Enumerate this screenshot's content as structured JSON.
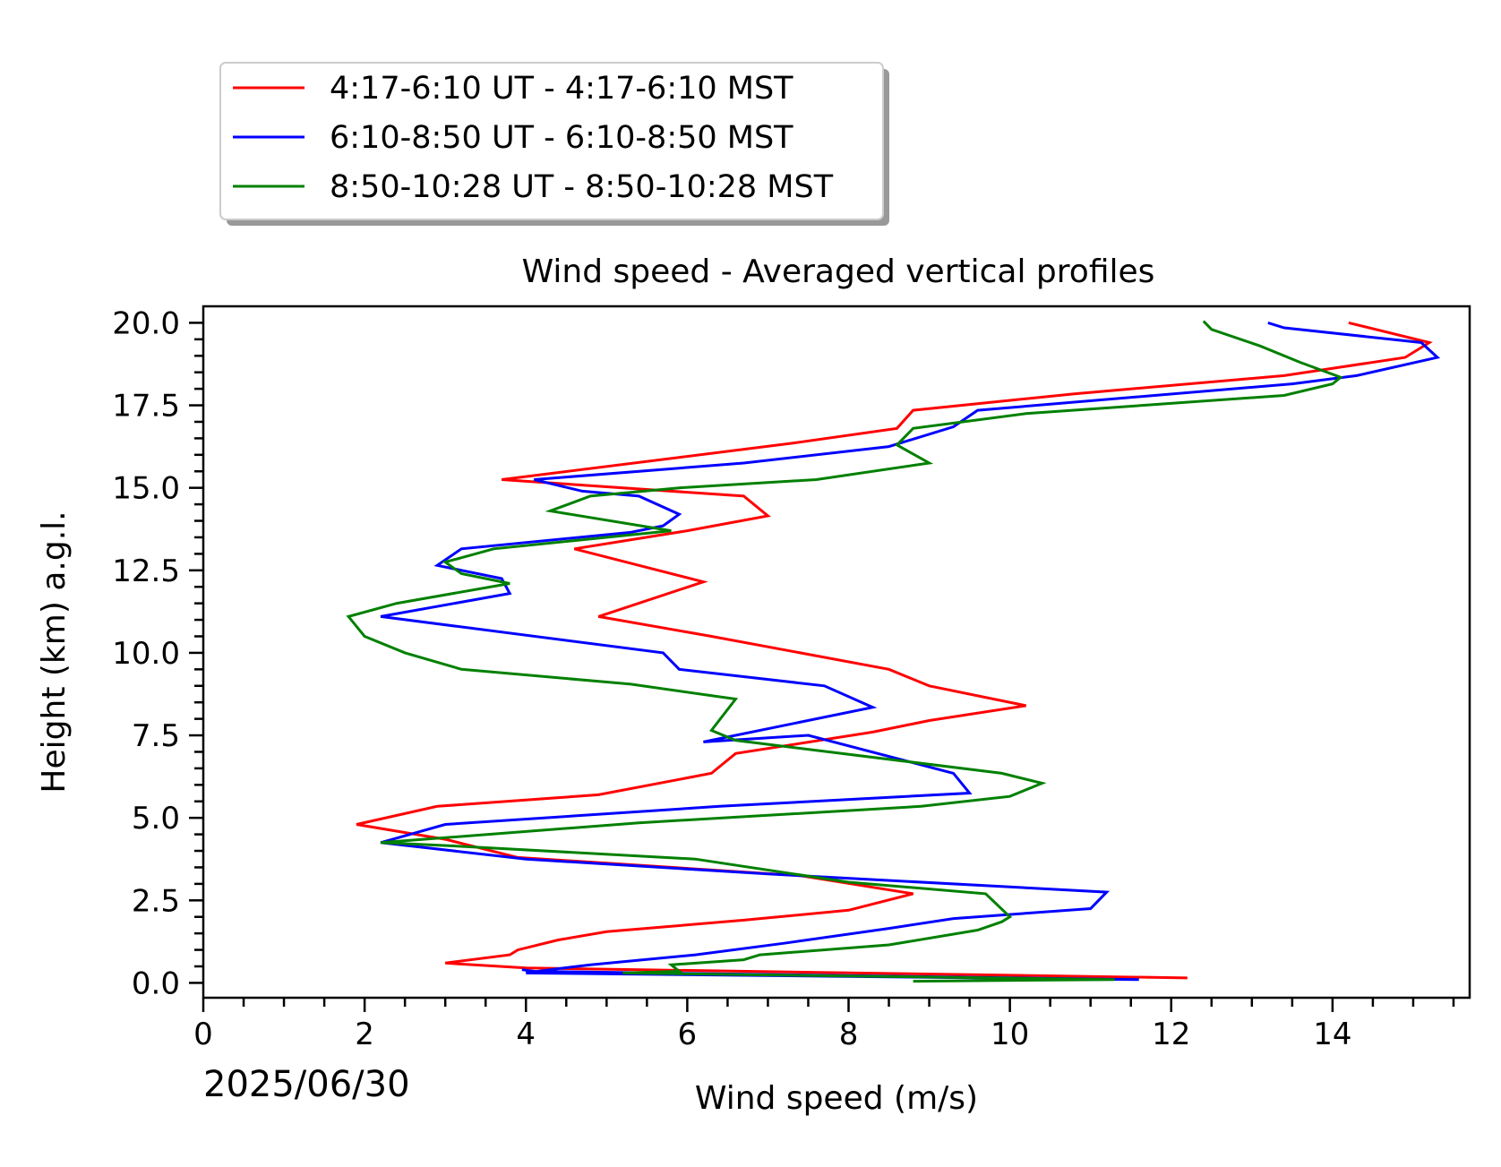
{
  "chart_data": {
    "type": "line",
    "title": "Wind speed - Averaged vertical profiles",
    "xlabel": "Wind speed (m/s)",
    "ylabel": "Height (km) a.g.l.",
    "date_label": "2025/06/30",
    "xlim": [
      0,
      15.7
    ],
    "ylim": [
      -0.45,
      20.5
    ],
    "x_major_ticks": [
      0,
      2,
      4,
      6,
      8,
      10,
      12,
      14
    ],
    "x_tick_labels": [
      "0",
      "2",
      "4",
      "6",
      "8",
      "10",
      "12",
      "14"
    ],
    "y_major_ticks": [
      0,
      2.5,
      5,
      7.5,
      10,
      12.5,
      15,
      17.5,
      20
    ],
    "y_tick_labels": [
      "0.0",
      "2.5",
      "5.0",
      "7.5",
      "10.0",
      "12.5",
      "15.0",
      "17.5",
      "20.0"
    ],
    "x_minor_step": 0.5,
    "y_minor_step": 0.5,
    "grid": false,
    "legend_position": "above plot, top-left",
    "series": [
      {
        "name": "4:17-6:10 UT - 4:17-6:10 MST",
        "color": "#ff0000",
        "points": [
          [
            12.2,
            0.15
          ],
          [
            4.0,
            0.45
          ],
          [
            3.0,
            0.6
          ],
          [
            3.8,
            0.85
          ],
          [
            3.9,
            1.0
          ],
          [
            4.4,
            1.3
          ],
          [
            5.0,
            1.55
          ],
          [
            6.7,
            1.9
          ],
          [
            8.0,
            2.2
          ],
          [
            8.8,
            2.7
          ],
          [
            7.4,
            3.25
          ],
          [
            3.9,
            3.8
          ],
          [
            3.0,
            4.35
          ],
          [
            1.9,
            4.8
          ],
          [
            2.9,
            5.35
          ],
          [
            4.9,
            5.7
          ],
          [
            6.3,
            6.35
          ],
          [
            6.6,
            6.95
          ],
          [
            8.3,
            7.6
          ],
          [
            9.0,
            7.95
          ],
          [
            10.2,
            8.4
          ],
          [
            9.0,
            9.0
          ],
          [
            8.5,
            9.5
          ],
          [
            6.3,
            10.5
          ],
          [
            4.9,
            11.1
          ],
          [
            6.2,
            12.15
          ],
          [
            4.6,
            13.15
          ],
          [
            6.0,
            13.7
          ],
          [
            7.0,
            14.15
          ],
          [
            6.7,
            14.75
          ],
          [
            3.7,
            15.25
          ],
          [
            7.3,
            16.35
          ],
          [
            8.6,
            16.8
          ],
          [
            8.8,
            17.35
          ],
          [
            10.8,
            17.85
          ],
          [
            13.4,
            18.4
          ],
          [
            14.9,
            18.95
          ],
          [
            15.2,
            19.4
          ],
          [
            14.2,
            20.0
          ]
        ]
      },
      {
        "name": "6:10-8:50 UT - 6:10-8:50 MST",
        "color": "#0000ff",
        "points": [
          [
            3.95,
            0.4
          ],
          [
            4.1,
            0.35
          ],
          [
            11.6,
            0.1
          ],
          [
            4.0,
            0.3
          ],
          [
            4.3,
            0.4
          ],
          [
            4.8,
            0.55
          ],
          [
            6.1,
            0.85
          ],
          [
            7.2,
            1.2
          ],
          [
            8.5,
            1.65
          ],
          [
            9.3,
            1.95
          ],
          [
            11.0,
            2.25
          ],
          [
            11.2,
            2.75
          ],
          [
            7.0,
            3.3
          ],
          [
            4.0,
            3.75
          ],
          [
            2.2,
            4.25
          ],
          [
            3.0,
            4.8
          ],
          [
            6.4,
            5.35
          ],
          [
            9.5,
            5.75
          ],
          [
            9.3,
            6.35
          ],
          [
            7.5,
            7.5
          ],
          [
            6.2,
            7.3
          ],
          [
            8.3,
            8.35
          ],
          [
            7.7,
            9.0
          ],
          [
            5.9,
            9.5
          ],
          [
            5.7,
            10.0
          ],
          [
            2.2,
            11.1
          ],
          [
            3.8,
            11.8
          ],
          [
            3.7,
            12.25
          ],
          [
            2.9,
            12.65
          ],
          [
            3.2,
            13.15
          ],
          [
            5.3,
            13.65
          ],
          [
            5.7,
            13.85
          ],
          [
            5.9,
            14.2
          ],
          [
            5.4,
            14.75
          ],
          [
            4.7,
            14.9
          ],
          [
            4.1,
            15.25
          ],
          [
            6.7,
            15.75
          ],
          [
            8.5,
            16.25
          ],
          [
            9.3,
            16.85
          ],
          [
            9.6,
            17.35
          ],
          [
            13.5,
            18.15
          ],
          [
            14.3,
            18.4
          ],
          [
            15.3,
            18.95
          ],
          [
            15.1,
            19.4
          ],
          [
            13.4,
            19.85
          ],
          [
            13.2,
            20.0
          ]
        ]
      },
      {
        "name": "8:50-10:28 UT - 8:50-10:28 MST",
        "color": "#008000",
        "points": [
          [
            8.8,
            0.05
          ],
          [
            11.3,
            0.1
          ],
          [
            5.2,
            0.3
          ],
          [
            5.9,
            0.35
          ],
          [
            5.8,
            0.55
          ],
          [
            6.7,
            0.7
          ],
          [
            6.9,
            0.85
          ],
          [
            8.5,
            1.15
          ],
          [
            9.6,
            1.6
          ],
          [
            9.9,
            1.85
          ],
          [
            10.0,
            2.0
          ],
          [
            9.7,
            2.7
          ],
          [
            8.0,
            3.05
          ],
          [
            6.1,
            3.75
          ],
          [
            3.1,
            4.15
          ],
          [
            2.2,
            4.25
          ],
          [
            5.4,
            4.85
          ],
          [
            8.9,
            5.35
          ],
          [
            10.0,
            5.65
          ],
          [
            10.4,
            6.05
          ],
          [
            9.9,
            6.35
          ],
          [
            6.6,
            7.35
          ],
          [
            6.3,
            7.65
          ],
          [
            6.6,
            8.6
          ],
          [
            5.3,
            9.05
          ],
          [
            3.2,
            9.5
          ],
          [
            2.5,
            10.0
          ],
          [
            2.0,
            10.5
          ],
          [
            1.8,
            11.1
          ],
          [
            2.4,
            11.5
          ],
          [
            3.8,
            12.1
          ],
          [
            3.2,
            12.4
          ],
          [
            3.0,
            12.75
          ],
          [
            3.6,
            13.15
          ],
          [
            5.8,
            13.7
          ],
          [
            4.3,
            14.3
          ],
          [
            4.8,
            14.75
          ],
          [
            5.9,
            15.0
          ],
          [
            7.6,
            15.25
          ],
          [
            9.0,
            15.75
          ],
          [
            8.6,
            16.3
          ],
          [
            8.8,
            16.8
          ],
          [
            10.2,
            17.25
          ],
          [
            13.4,
            17.8
          ],
          [
            14.0,
            18.15
          ],
          [
            14.1,
            18.35
          ],
          [
            13.6,
            18.8
          ],
          [
            13.1,
            19.3
          ],
          [
            12.5,
            19.8
          ],
          [
            12.4,
            20.05
          ]
        ]
      }
    ]
  }
}
